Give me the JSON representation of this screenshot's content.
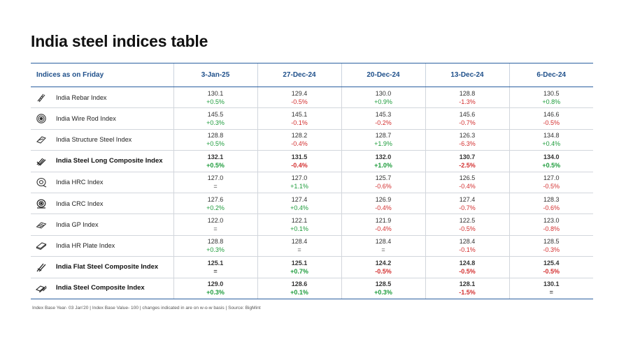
{
  "title": "India steel indices table",
  "header": {
    "label": "Indices as on Friday",
    "dates": [
      "3-Jan-25",
      "27-Dec-24",
      "20-Dec-24",
      "13-Dec-24",
      "6-Dec-24"
    ]
  },
  "rows": [
    {
      "name": "India Rebar Index",
      "icon": "rebar-icon",
      "bold": false,
      "cells": [
        {
          "v": "130.1",
          "c": "+0.5%"
        },
        {
          "v": "129.4",
          "c": "-0.5%"
        },
        {
          "v": "130.0",
          "c": "+0.9%"
        },
        {
          "v": "128.8",
          "c": "-1.3%"
        },
        {
          "v": "130.5",
          "c": "+0.8%"
        }
      ]
    },
    {
      "name": "India Wire Rod Index",
      "icon": "wire-coil-icon",
      "bold": false,
      "cells": [
        {
          "v": "145.5",
          "c": "+0.3%"
        },
        {
          "v": "145.1",
          "c": "-0.1%"
        },
        {
          "v": "145.3",
          "c": "-0.2%"
        },
        {
          "v": "145.6",
          "c": "-0.7%"
        },
        {
          "v": "146.6",
          "c": "-0.5%"
        }
      ]
    },
    {
      "name": "India Structure Steel Index",
      "icon": "structure-steel-icon",
      "bold": false,
      "cells": [
        {
          "v": "128.8",
          "c": "+0.5%"
        },
        {
          "v": "128.2",
          "c": "-0.4%"
        },
        {
          "v": "128.7",
          "c": "+1.9%"
        },
        {
          "v": "126.3",
          "c": "-6.3%"
        },
        {
          "v": "134.8",
          "c": "+0.4%"
        }
      ]
    },
    {
      "name": "India Steel Long Composite Index",
      "icon": "long-composite-icon",
      "bold": true,
      "cells": [
        {
          "v": "132.1",
          "c": "+0.5%"
        },
        {
          "v": "131.5",
          "c": "-0.4%"
        },
        {
          "v": "132.0",
          "c": "+1.0%"
        },
        {
          "v": "130.7",
          "c": "-2.5%"
        },
        {
          "v": "134.0",
          "c": "+0.5%"
        }
      ]
    },
    {
      "name": "India HRC Index",
      "icon": "hrc-coil-icon",
      "bold": false,
      "cells": [
        {
          "v": "127.0",
          "c": "="
        },
        {
          "v": "127.0",
          "c": "+1.1%"
        },
        {
          "v": "125.7",
          "c": "-0.6%"
        },
        {
          "v": "126.5",
          "c": "-0.4%"
        },
        {
          "v": "127.0",
          "c": "-0.5%"
        }
      ]
    },
    {
      "name": "India CRC Index",
      "icon": "crc-coil-icon",
      "bold": false,
      "cells": [
        {
          "v": "127.6",
          "c": "+0.2%"
        },
        {
          "v": "127.4",
          "c": "+0.4%"
        },
        {
          "v": "126.9",
          "c": "-0.4%"
        },
        {
          "v": "127.4",
          "c": "-0.7%"
        },
        {
          "v": "128.3",
          "c": "-0.6%"
        }
      ]
    },
    {
      "name": "India GP Index",
      "icon": "gp-sheet-icon",
      "bold": false,
      "cells": [
        {
          "v": "122.0",
          "c": "="
        },
        {
          "v": "122.1",
          "c": "+0.1%"
        },
        {
          "v": "121.9",
          "c": "-0.4%"
        },
        {
          "v": "122.5",
          "c": "-0.5%"
        },
        {
          "v": "123.0",
          "c": "-0.8%"
        }
      ]
    },
    {
      "name": "India HR Plate Index",
      "icon": "hr-plate-icon",
      "bold": false,
      "cells": [
        {
          "v": "128.8",
          "c": "+0.3%"
        },
        {
          "v": "128.4",
          "c": "="
        },
        {
          "v": "128.4",
          "c": "="
        },
        {
          "v": "128.4",
          "c": "-0.1%"
        },
        {
          "v": "128.5",
          "c": "-0.3%"
        }
      ]
    },
    {
      "name": "India Flat Steel Composite Index",
      "icon": "flat-composite-icon",
      "bold": true,
      "cells": [
        {
          "v": "125.1",
          "c": "="
        },
        {
          "v": "125.1",
          "c": "+0.7%"
        },
        {
          "v": "124.2",
          "c": "-0.5%"
        },
        {
          "v": "124.8",
          "c": "-0.5%"
        },
        {
          "v": "125.4",
          "c": "-0.5%"
        }
      ]
    },
    {
      "name": "India Steel Composite Index",
      "icon": "steel-composite-icon",
      "bold": true,
      "cells": [
        {
          "v": "129.0",
          "c": "+0.3%"
        },
        {
          "v": "128.6",
          "c": "+0.1%"
        },
        {
          "v": "128.5",
          "c": "+0.3%"
        },
        {
          "v": "128.1",
          "c": "-1.5%"
        },
        {
          "v": "130.1",
          "c": "="
        }
      ]
    }
  ],
  "footnote": "Index Base Year- 03 Jan'20 | Index Base Value- 100 | changes indicated in are on w-o-w basis | Source: BigMint",
  "colors": {
    "positive": "#1e9c3c",
    "negative": "#d32f2f",
    "header": "#1e4f8a",
    "rule": "#2a5fa0"
  }
}
